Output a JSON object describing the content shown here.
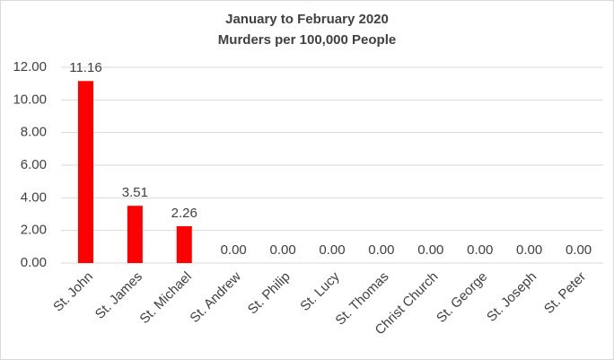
{
  "chart_data": {
    "type": "bar",
    "title": "January to February 2020",
    "subtitle": "Murders per 100,000 People",
    "categories": [
      "St. John",
      "St. James",
      "St. Michael",
      "St. Andrew",
      "St. Philip",
      "St. Lucy",
      "St. Thomas",
      "Christ Church",
      "St. George",
      "St. Joseph",
      "St. Peter"
    ],
    "values": [
      11.16,
      3.51,
      2.26,
      0,
      0,
      0,
      0,
      0,
      0,
      0,
      0
    ],
    "value_labels": [
      "11.16",
      "3.51",
      "2.26",
      "0.00",
      "0.00",
      "0.00",
      "0.00",
      "0.00",
      "0.00",
      "0.00",
      "0.00"
    ],
    "color": "#ff0000",
    "ylim": [
      0,
      12
    ],
    "yticks": [
      {
        "value": 0,
        "label": "0.00"
      },
      {
        "value": 2,
        "label": "2.00"
      },
      {
        "value": 4,
        "label": "4.00"
      },
      {
        "value": 6,
        "label": "6.00"
      },
      {
        "value": 8,
        "label": "8.00"
      },
      {
        "value": 10,
        "label": "10.00"
      },
      {
        "value": 12,
        "label": "12.00"
      }
    ],
    "grid": true
  }
}
